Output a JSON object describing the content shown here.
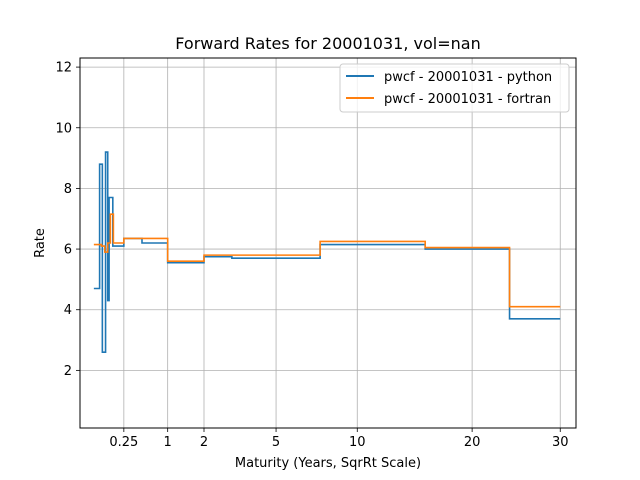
{
  "chart_data": {
    "type": "line",
    "title": "Forward Rates for 20001031, vol=nan",
    "xlabel": "Maturity (Years, SqrRt Scale)",
    "ylabel": "Rate",
    "x_scale": "sqrt",
    "xlim": [
      0,
      32
    ],
    "ylim": [
      0.1,
      12.3
    ],
    "x_ticks": [
      0.25,
      1,
      2,
      5,
      10,
      20,
      30
    ],
    "x_tick_labels": [
      "0.25",
      "1",
      "2",
      "5",
      "10",
      "20",
      "30"
    ],
    "y_ticks": [
      2,
      4,
      6,
      8,
      10,
      12
    ],
    "y_tick_labels": [
      "2",
      "4",
      "6",
      "8",
      "10",
      "12"
    ],
    "grid": true,
    "legend_position": "top-right",
    "series": [
      {
        "name": "pwcf - 20001031 - python",
        "color": "#1f77b4",
        "step": true,
        "points": [
          [
            0.025,
            4.7
          ],
          [
            0.05,
            4.7
          ],
          [
            0.05,
            8.8
          ],
          [
            0.065,
            8.8
          ],
          [
            0.065,
            2.6
          ],
          [
            0.085,
            2.6
          ],
          [
            0.085,
            9.2
          ],
          [
            0.1,
            9.2
          ],
          [
            0.1,
            4.3
          ],
          [
            0.11,
            4.3
          ],
          [
            0.11,
            7.7
          ],
          [
            0.14,
            7.7
          ],
          [
            0.14,
            6.1
          ],
          [
            0.25,
            6.1
          ],
          [
            0.25,
            6.35
          ],
          [
            0.5,
            6.35
          ],
          [
            0.5,
            6.2
          ],
          [
            1.0,
            6.2
          ],
          [
            1.0,
            5.55
          ],
          [
            2.0,
            5.55
          ],
          [
            2.0,
            5.75
          ],
          [
            3.0,
            5.75
          ],
          [
            3.0,
            5.7
          ],
          [
            7.5,
            5.7
          ],
          [
            7.5,
            6.15
          ],
          [
            15.5,
            6.15
          ],
          [
            15.5,
            6.0
          ],
          [
            24.0,
            6.0
          ],
          [
            24.0,
            3.7
          ],
          [
            30.0,
            3.7
          ]
        ]
      },
      {
        "name": "pwcf - 20001031 - fortran",
        "color": "#ff7f0e",
        "step": true,
        "points": [
          [
            0.025,
            6.15
          ],
          [
            0.06,
            6.15
          ],
          [
            0.06,
            6.1
          ],
          [
            0.08,
            6.1
          ],
          [
            0.08,
            5.9
          ],
          [
            0.1,
            5.9
          ],
          [
            0.1,
            6.2
          ],
          [
            0.12,
            6.2
          ],
          [
            0.12,
            7.15
          ],
          [
            0.145,
            7.15
          ],
          [
            0.145,
            6.2
          ],
          [
            0.25,
            6.2
          ],
          [
            0.25,
            6.35
          ],
          [
            1.0,
            6.35
          ],
          [
            1.0,
            5.6
          ],
          [
            2.0,
            5.6
          ],
          [
            2.0,
            5.8
          ],
          [
            7.5,
            5.8
          ],
          [
            7.5,
            6.25
          ],
          [
            15.5,
            6.25
          ],
          [
            15.5,
            6.05
          ],
          [
            24.0,
            6.05
          ],
          [
            24.0,
            4.1
          ],
          [
            30.0,
            4.1
          ]
        ]
      }
    ]
  }
}
